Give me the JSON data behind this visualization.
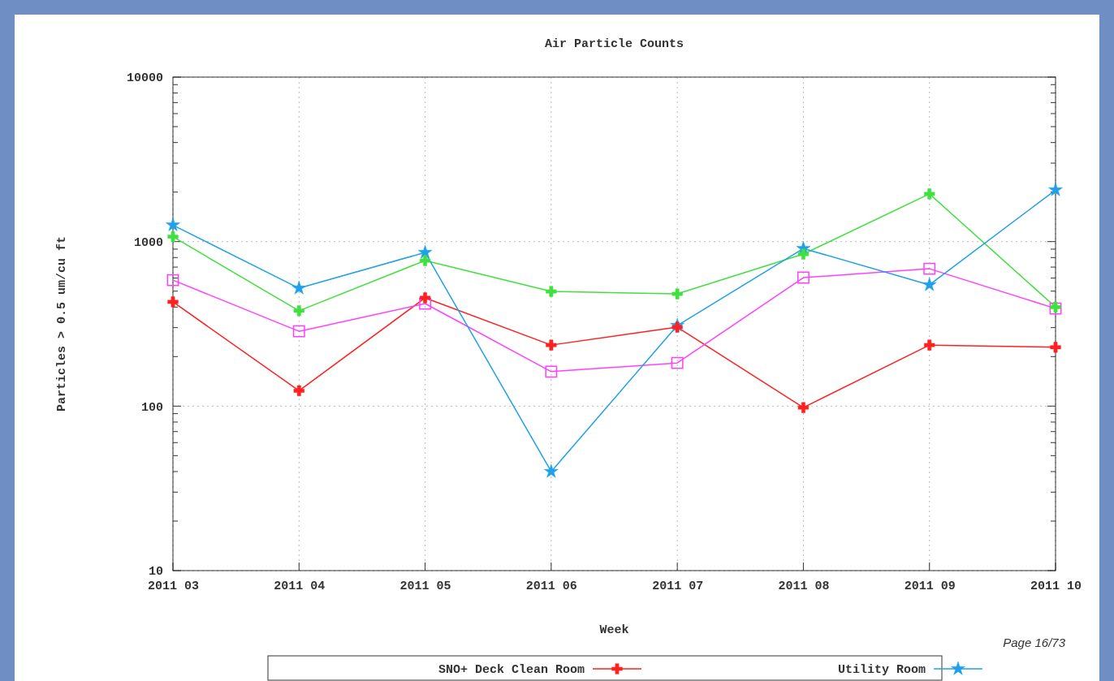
{
  "chart_data": {
    "type": "line",
    "title": "Air Particle Counts",
    "xlabel": "Week",
    "ylabel": "Particles > 0.5 um/cu ft",
    "categories": [
      "2011 03",
      "2011 04",
      "2011 05",
      "2011 06",
      "2011 07",
      "2011 08",
      "2011 09",
      "2011 10"
    ],
    "series": [
      {
        "name": "SNO+ Deck Clean Room",
        "color": "#ff2020",
        "marker": "cross",
        "values": [
          430,
          124,
          455,
          235,
          302,
          98,
          235,
          228
        ]
      },
      {
        "color": "#40e040",
        "marker": "cross",
        "values": [
          1070,
          380,
          767,
          498,
          481,
          840,
          1950,
          400
        ]
      },
      {
        "color": "#ff40ff",
        "marker": "square",
        "values": [
          583,
          285,
          420,
          162,
          183,
          604,
          684,
          392
        ]
      },
      {
        "name": "Utility Room",
        "color": "#20a0e8",
        "marker": "star",
        "values": [
          1260,
          521,
          859,
          40,
          309,
          908,
          546,
          2060
        ]
      }
    ],
    "log": true,
    "ylim": [
      10,
      10000
    ],
    "yticks": [
      10,
      {
        "value": 20,
        "label": null
      },
      {
        "value": 30,
        "label": null
      },
      {
        "value": 40,
        "label": null
      },
      {
        "value": 50,
        "label": null
      },
      {
        "value": 60,
        "label": null
      },
      {
        "value": 70,
        "label": null
      },
      {
        "value": 80,
        "label": null
      },
      {
        "value": 90,
        "label": null
      },
      100,
      {
        "value": 200,
        "label": null
      },
      {
        "value": 300,
        "label": null
      },
      {
        "value": 400,
        "label": null
      },
      {
        "value": 500,
        "label": null
      },
      {
        "value": 600,
        "label": null
      },
      {
        "value": 700,
        "label": null
      },
      {
        "value": 800,
        "label": null
      },
      {
        "value": 900,
        "label": null
      },
      1000,
      {
        "value": 2000,
        "label": null
      },
      {
        "value": 3000,
        "label": null
      },
      {
        "value": 4000,
        "label": null
      },
      {
        "value": 5000,
        "label": null
      },
      {
        "value": 6000,
        "label": null
      },
      {
        "value": 7000,
        "label": null
      },
      {
        "value": 8000,
        "label": null
      },
      {
        "value": 9000,
        "label": null
      },
      10000
    ],
    "grid": true,
    "legend": "bottom",
    "annotations": [
      "Page 16/73"
    ]
  }
}
